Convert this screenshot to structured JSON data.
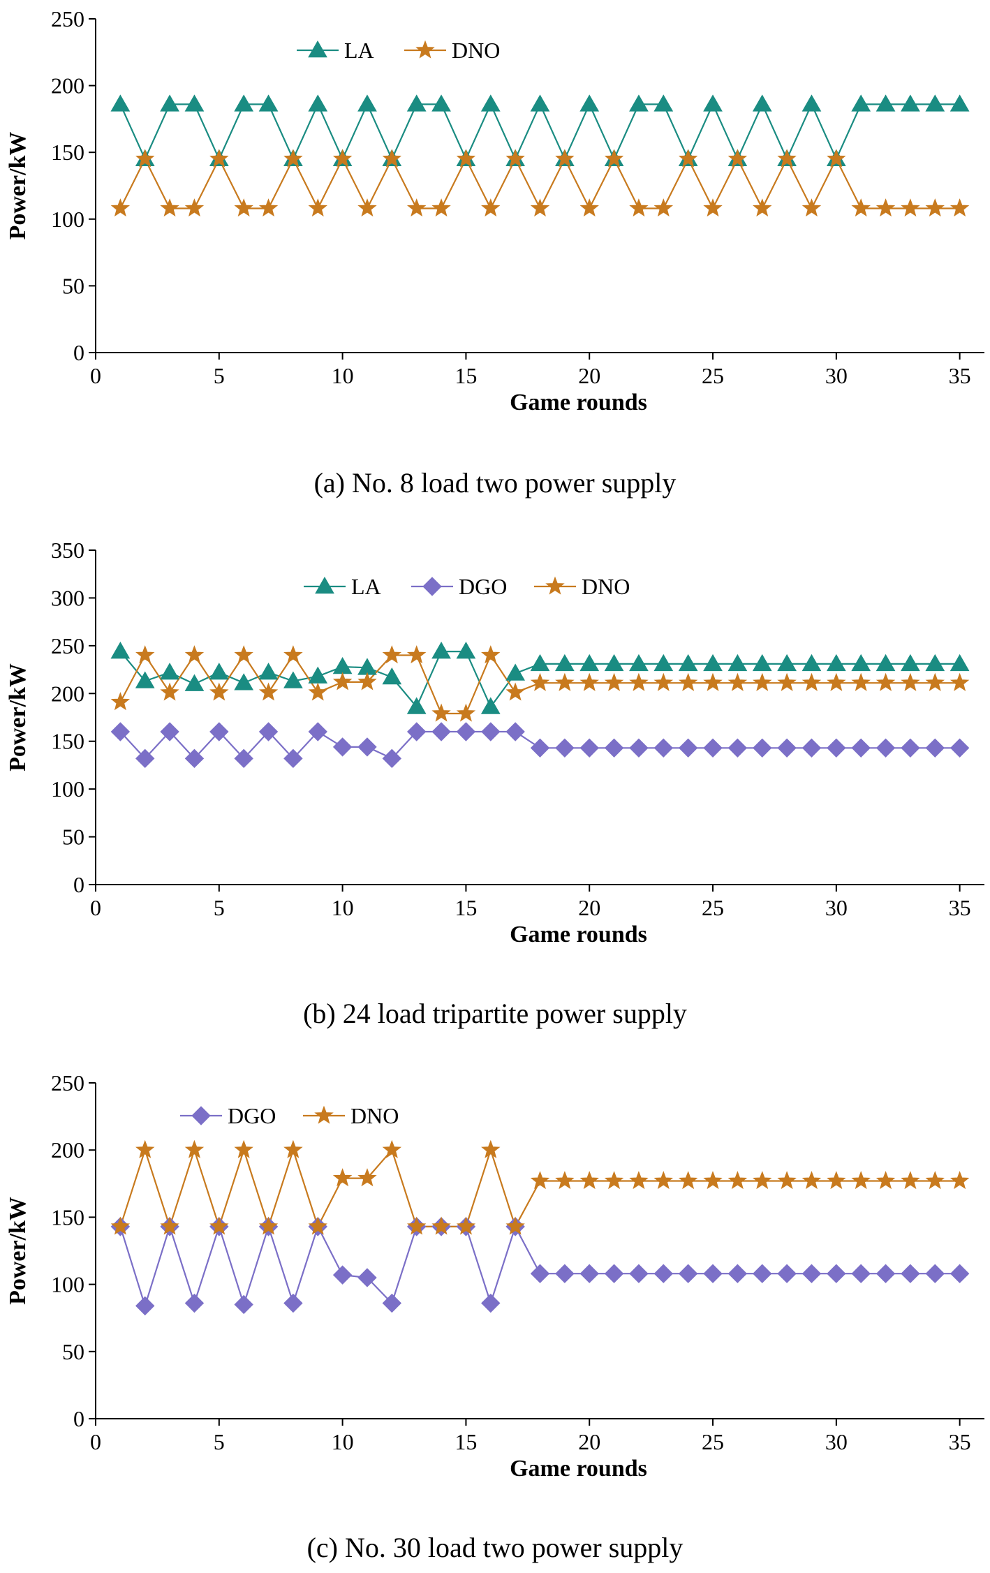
{
  "colors": {
    "LA": "#1a8c82",
    "DNO": "#c87a1e",
    "DGO": "#7b6fc7",
    "axis": "#000000"
  },
  "chart_data": [
    {
      "type": "line",
      "caption": "(a) No. 8 load two power supply",
      "xlabel": "Game rounds",
      "ylabel": "Power/kW",
      "xlim": [
        0,
        36
      ],
      "ylim": [
        0,
        250
      ],
      "xticks": [
        0,
        5,
        10,
        15,
        20,
        25,
        30,
        35
      ],
      "yticks": [
        0,
        50,
        100,
        150,
        200,
        250
      ],
      "legend_position": "top-left",
      "x": [
        1,
        2,
        3,
        4,
        5,
        6,
        7,
        8,
        9,
        10,
        11,
        12,
        13,
        14,
        15,
        16,
        17,
        18,
        19,
        20,
        21,
        22,
        23,
        24,
        25,
        26,
        27,
        28,
        29,
        30,
        31,
        32,
        33,
        34,
        35
      ],
      "series": [
        {
          "name": "LA",
          "marker": "triangle",
          "color_key": "LA",
          "values": [
            186,
            145,
            186,
            186,
            145,
            186,
            186,
            145,
            186,
            145,
            186,
            145,
            186,
            186,
            145,
            186,
            145,
            186,
            145,
            186,
            145,
            186,
            186,
            145,
            186,
            145,
            186,
            145,
            186,
            145,
            186,
            186,
            186,
            186,
            186
          ]
        },
        {
          "name": "DNO",
          "marker": "star",
          "color_key": "DNO",
          "values": [
            108,
            145,
            108,
            108,
            145,
            108,
            108,
            145,
            108,
            145,
            108,
            145,
            108,
            108,
            145,
            108,
            145,
            108,
            145,
            108,
            145,
            108,
            108,
            145,
            108,
            145,
            108,
            145,
            108,
            145,
            108,
            108,
            108,
            108,
            108
          ]
        }
      ]
    },
    {
      "type": "line",
      "caption": "(b) 24 load tripartite power supply",
      "xlabel": "Game rounds",
      "ylabel": "Power/kW",
      "xlim": [
        0,
        36
      ],
      "ylim": [
        0,
        350
      ],
      "xticks": [
        0,
        5,
        10,
        15,
        20,
        25,
        30,
        35
      ],
      "yticks": [
        0,
        50,
        100,
        150,
        200,
        250,
        300,
        350
      ],
      "legend_position": "top-center",
      "x": [
        1,
        2,
        3,
        4,
        5,
        6,
        7,
        8,
        9,
        10,
        11,
        12,
        13,
        14,
        15,
        16,
        17,
        18,
        19,
        20,
        21,
        22,
        23,
        24,
        25,
        26,
        27,
        28,
        29,
        30,
        31,
        32,
        33,
        34,
        35
      ],
      "series": [
        {
          "name": "LA",
          "marker": "triangle",
          "color_key": "LA",
          "values": [
            244,
            213,
            222,
            210,
            222,
            211,
            222,
            213,
            218,
            228,
            227,
            217,
            186,
            244,
            244,
            186,
            221,
            231,
            231,
            231,
            231,
            231,
            231,
            231,
            231,
            231,
            231,
            231,
            231,
            231,
            231,
            231,
            231,
            231,
            231
          ]
        },
        {
          "name": "DGO",
          "marker": "diamond",
          "color_key": "DGO",
          "values": [
            160,
            132,
            160,
            132,
            160,
            132,
            160,
            132,
            160,
            144,
            144,
            132,
            160,
            160,
            160,
            160,
            160,
            143,
            143,
            143,
            143,
            143,
            143,
            143,
            143,
            143,
            143,
            143,
            143,
            143,
            143,
            143,
            143,
            143,
            143
          ]
        },
        {
          "name": "DNO",
          "marker": "star",
          "color_key": "DNO",
          "values": [
            191,
            240,
            201,
            240,
            201,
            240,
            201,
            240,
            201,
            212,
            212,
            240,
            240,
            179,
            179,
            240,
            201,
            211,
            211,
            211,
            211,
            211,
            211,
            211,
            211,
            211,
            211,
            211,
            211,
            211,
            211,
            211,
            211,
            211,
            211
          ]
        }
      ]
    },
    {
      "type": "line",
      "caption": "(c) No. 30 load two power supply",
      "xlabel": "Game rounds",
      "ylabel": "Power/kW",
      "xlim": [
        0,
        36
      ],
      "ylim": [
        0,
        250
      ],
      "xticks": [
        0,
        5,
        10,
        15,
        20,
        25,
        30,
        35
      ],
      "yticks": [
        0,
        50,
        100,
        150,
        200,
        250
      ],
      "legend_position": "top-left",
      "x": [
        1,
        2,
        3,
        4,
        5,
        6,
        7,
        8,
        9,
        10,
        11,
        12,
        13,
        14,
        15,
        16,
        17,
        18,
        19,
        20,
        21,
        22,
        23,
        24,
        25,
        26,
        27,
        28,
        29,
        30,
        31,
        32,
        33,
        34,
        35
      ],
      "series": [
        {
          "name": "DGO",
          "marker": "diamond",
          "color_key": "DGO",
          "values": [
            143,
            84,
            143,
            86,
            143,
            85,
            143,
            86,
            143,
            107,
            105,
            86,
            143,
            143,
            143,
            86,
            143,
            108,
            108,
            108,
            108,
            108,
            108,
            108,
            108,
            108,
            108,
            108,
            108,
            108,
            108,
            108,
            108,
            108,
            108
          ]
        },
        {
          "name": "DNO",
          "marker": "star",
          "color_key": "DNO",
          "values": [
            143,
            200,
            143,
            200,
            143,
            200,
            143,
            200,
            143,
            179,
            179,
            200,
            143,
            143,
            143,
            200,
            143,
            177,
            177,
            177,
            177,
            177,
            177,
            177,
            177,
            177,
            177,
            177,
            177,
            177,
            177,
            177,
            177,
            177,
            177
          ]
        }
      ]
    }
  ]
}
